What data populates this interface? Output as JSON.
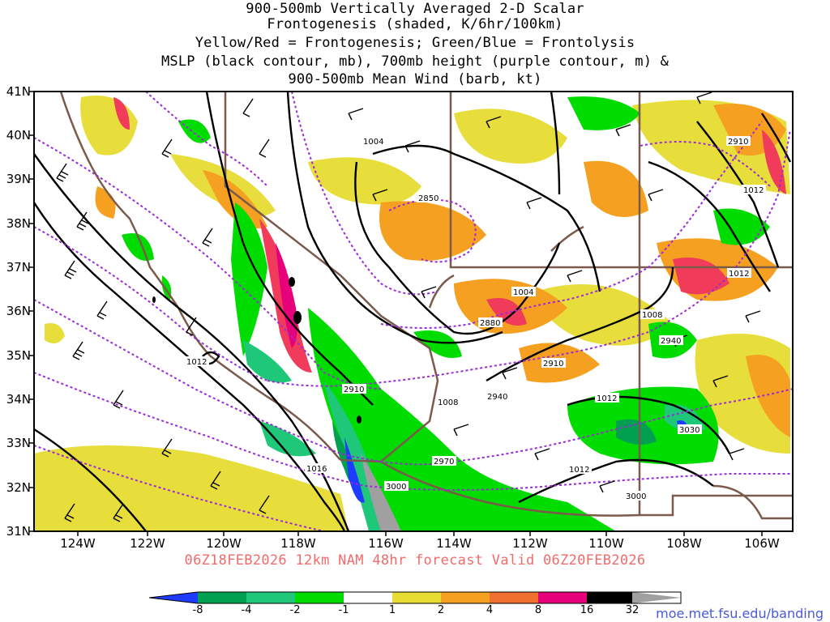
{
  "title_lines": [
    "900-500mb Vertically Averaged 2-D Scalar",
    "Frontogenesis (shaded, K/6hr/100km)",
    "Yellow/Red = Frontogenesis;  Green/Blue = Frontolysis",
    "MSLP (black contour, mb), 700mb height (purple contour, m) &",
    "900-500mb Mean Wind (barb, kt)"
  ],
  "lat_labels": [
    "41N",
    "40N",
    "39N",
    "38N",
    "37N",
    "36N",
    "35N",
    "34N",
    "33N",
    "32N",
    "31N"
  ],
  "lon_labels": [
    "124W",
    "122W",
    "120W",
    "118W",
    "116W",
    "114W",
    "112W",
    "110W",
    "108W",
    "106W"
  ],
  "valid_line": "06Z18FEB2026 12km NAM 48hr forecast Valid 06Z20FEB2026",
  "colorbar": {
    "labels": [
      "-8",
      "-4",
      "-2",
      "-1",
      "1",
      "2",
      "4",
      "8",
      "16",
      "32"
    ],
    "colors": [
      "#1e3cff",
      "#00a050",
      "#1ec878",
      "#00dc00",
      "#ffffff",
      "#e6dc32",
      "#f5a020",
      "#f07030",
      "#f03c5a",
      "#e6007a",
      "#000000",
      "#a0a0a0"
    ]
  },
  "url": "moe.met.fsu.edu/banding",
  "contour_labels": {
    "mslp": [
      "1004",
      "1004",
      "1008",
      "1008",
      "1012",
      "1012",
      "1012",
      "1012",
      "1012",
      "1016"
    ],
    "height": [
      "2850",
      "2880",
      "2910",
      "2910",
      "2910",
      "2940",
      "2940",
      "2970",
      "3000",
      "3000",
      "3030"
    ]
  },
  "colors": {
    "mslp": "#000000",
    "height": "#9b2bd6",
    "border": "#7a5a4a",
    "valid_text": "#f26b6b",
    "url_text": "#4a5ad8"
  }
}
